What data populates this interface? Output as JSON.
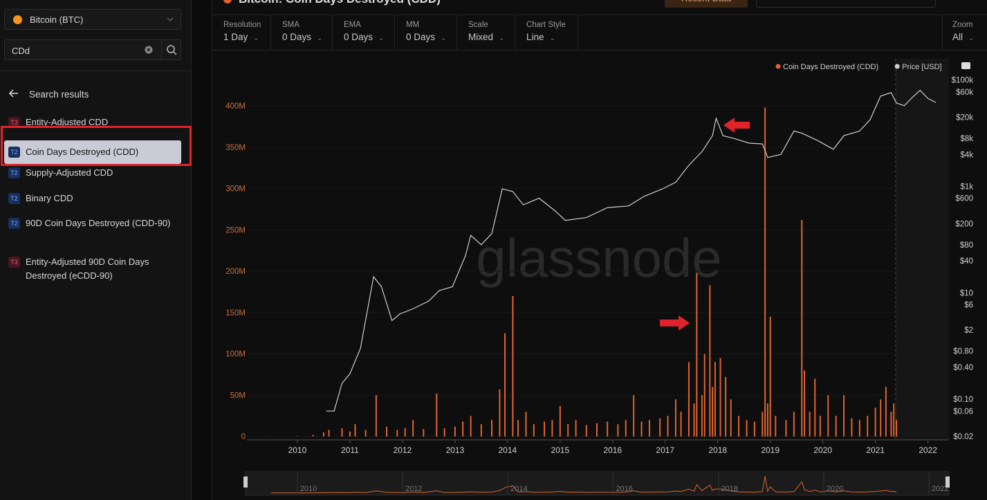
{
  "header": {
    "title": "Bitcoin: Coin Days Destroyed (CDD)",
    "button": "Recent Data"
  },
  "sidebar": {
    "asset": "Bitcoin (BTC)",
    "search": "CDd",
    "results_heading": "Search results",
    "items": [
      {
        "tier": "T3",
        "name": "Entity-Adjusted CDD"
      },
      {
        "tier": "T2",
        "name": "Coin Days Destroyed (CDD)"
      },
      {
        "tier": "T2",
        "name": "Supply-Adjusted CDD"
      },
      {
        "tier": "T2",
        "name": "Binary CDD"
      },
      {
        "tier": "T2",
        "name": "90D Coin Days Destroyed (CDD-90)"
      },
      {
        "tier": "T3",
        "name": "Entity-Adjusted 90D Coin Days Destroyed (eCDD-90)"
      }
    ]
  },
  "toolbar": [
    {
      "label": "Resolution",
      "value": "1 Day"
    },
    {
      "label": "SMA",
      "value": "0 Days"
    },
    {
      "label": "EMA",
      "value": "0 Days"
    },
    {
      "label": "MM",
      "value": "0 Days"
    },
    {
      "label": "Scale",
      "value": "Mixed"
    },
    {
      "label": "Chart Style",
      "value": "Line"
    },
    {
      "label": "Zoom",
      "value": "All"
    }
  ],
  "chart_data": {
    "type": "combo",
    "watermark": "glassnode",
    "grid": true,
    "xlim": [
      2009.04,
      2022.4
    ],
    "xticks": [
      2010,
      2011,
      2012,
      2013,
      2014,
      2015,
      2016,
      2017,
      2018,
      2019,
      2020,
      2021,
      2022
    ],
    "ylim": [
      -4000000,
      457000000
    ],
    "yticks": [
      {
        "value": 0,
        "label": "0"
      },
      {
        "value": 50000000,
        "label": "50M"
      },
      {
        "value": 100000000,
        "label": "100M"
      },
      {
        "value": 150000000,
        "label": "150M"
      },
      {
        "value": 200000000,
        "label": "200M"
      },
      {
        "value": 250000000,
        "label": "250M"
      },
      {
        "value": 300000000,
        "label": "300M"
      },
      {
        "value": 350000000,
        "label": "350M"
      },
      {
        "value": 400000000,
        "label": "400M"
      }
    ],
    "y2lim": [
      0.0172,
      251000
    ],
    "y2log": true,
    "y2ticks": [
      {
        "value": 100000,
        "label": "$100k"
      },
      {
        "value": 60000,
        "label": "$60k"
      },
      {
        "value": 20000,
        "label": "$20k"
      },
      {
        "value": 8000,
        "label": "$8k"
      },
      {
        "value": 4000,
        "label": "$4k"
      },
      {
        "value": 1000,
        "label": "$1k"
      },
      {
        "value": 600,
        "label": "$600"
      },
      {
        "value": 200,
        "label": "$200"
      },
      {
        "value": 80,
        "label": "$80"
      },
      {
        "value": 40,
        "label": "$40"
      },
      {
        "value": 10,
        "label": "$10"
      },
      {
        "value": 6,
        "label": "$6"
      },
      {
        "value": 2,
        "label": "$2"
      },
      {
        "value": 0.8,
        "label": "$0.80"
      },
      {
        "value": 0.4,
        "label": "$0.40"
      },
      {
        "value": 0.1,
        "label": "$0.10"
      },
      {
        "value": 0.06,
        "label": "$0.06"
      },
      {
        "value": 0.02,
        "label": "$0.02"
      }
    ],
    "series": [
      {
        "name": "Coin Days Destroyed (CDD)",
        "type": "bar",
        "color": "#e0652c",
        "x": [
          2009.5,
          2010.0,
          2010.3,
          2010.5,
          2010.6,
          2010.85,
          2011.0,
          2011.1,
          2011.3,
          2011.5,
          2011.7,
          2011.9,
          2012.05,
          2012.2,
          2012.4,
          2012.65,
          2012.8,
          2013.0,
          2013.15,
          2013.3,
          2013.5,
          2013.7,
          2013.85,
          2013.95,
          2014.1,
          2014.2,
          2014.35,
          2014.5,
          2014.7,
          2014.85,
          2015.0,
          2015.15,
          2015.3,
          2015.5,
          2015.7,
          2015.9,
          2016.1,
          2016.25,
          2016.4,
          2016.55,
          2016.7,
          2016.9,
          2017.05,
          2017.2,
          2017.3,
          2017.45,
          2017.55,
          2017.6,
          2017.7,
          2017.75,
          2017.85,
          2017.9,
          2017.95,
          2018.05,
          2018.15,
          2018.25,
          2018.4,
          2018.55,
          2018.7,
          2018.85,
          2018.9,
          2018.95,
          2019.0,
          2019.1,
          2019.3,
          2019.45,
          2019.6,
          2019.65,
          2019.75,
          2019.85,
          2019.95,
          2020.1,
          2020.25,
          2020.4,
          2020.55,
          2020.7,
          2020.85,
          2021.0,
          2021.1,
          2021.2,
          2021.3,
          2021.35,
          2021.4
        ],
        "values": [
          200000,
          500000,
          2000000,
          5000000,
          8000000,
          10000000,
          6000000,
          15000000,
          8000000,
          50000000,
          12000000,
          8000000,
          10000000,
          20000000,
          9000000,
          52000000,
          10000000,
          12000000,
          18000000,
          25000000,
          15000000,
          20000000,
          57000000,
          125000000,
          170000000,
          20000000,
          30000000,
          15000000,
          18000000,
          20000000,
          37000000,
          15000000,
          20000000,
          14000000,
          16000000,
          18000000,
          15000000,
          20000000,
          50000000,
          18000000,
          20000000,
          22000000,
          25000000,
          45000000,
          30000000,
          90000000,
          40000000,
          198000000,
          50000000,
          100000000,
          183000000,
          60000000,
          90000000,
          95000000,
          72000000,
          45000000,
          25000000,
          20000000,
          18000000,
          30000000,
          398000000,
          40000000,
          145000000,
          25000000,
          20000000,
          30000000,
          262000000,
          80000000,
          30000000,
          70000000,
          25000000,
          50000000,
          25000000,
          50000000,
          22000000,
          20000000,
          25000000,
          35000000,
          45000000,
          60000000,
          30000000,
          40000000,
          20000000
        ]
      },
      {
        "name": "Price [USD]",
        "type": "line",
        "axis": "y2",
        "color": "#d0d0d0",
        "x": [
          2010.55,
          2010.7,
          2010.85,
          2011.0,
          2011.2,
          2011.45,
          2011.6,
          2011.8,
          2011.95,
          2012.2,
          2012.5,
          2012.7,
          2012.95,
          2013.2,
          2013.3,
          2013.5,
          2013.7,
          2013.9,
          2014.1,
          2014.3,
          2014.6,
          2014.9,
          2015.1,
          2015.5,
          2015.9,
          2016.3,
          2016.6,
          2016.95,
          2017.2,
          2017.45,
          2017.7,
          2017.9,
          2017.97,
          2018.1,
          2018.3,
          2018.6,
          2018.85,
          2018.95,
          2019.2,
          2019.45,
          2019.6,
          2019.9,
          2020.2,
          2020.4,
          2020.7,
          2020.9,
          2021.0,
          2021.1,
          2021.3,
          2021.4,
          2021.55,
          2021.7,
          2021.85,
          2022.0,
          2022.15
        ],
        "values": [
          0.06,
          0.06,
          0.2,
          0.3,
          0.9,
          20,
          13,
          3,
          4,
          5,
          7,
          11,
          13,
          50,
          120,
          80,
          130,
          900,
          800,
          450,
          600,
          350,
          230,
          260,
          400,
          430,
          650,
          900,
          1200,
          2500,
          4500,
          9000,
          19000,
          9000,
          8000,
          6500,
          6300,
          3500,
          4000,
          11000,
          10000,
          7300,
          5000,
          9000,
          11000,
          18000,
          30000,
          50000,
          58000,
          37000,
          33000,
          47000,
          64000,
          45000,
          38000
        ]
      }
    ],
    "navigator": {
      "labels": [
        "2010",
        "2012",
        "2014",
        "2016",
        "2018",
        "2020",
        "2022"
      ]
    }
  }
}
